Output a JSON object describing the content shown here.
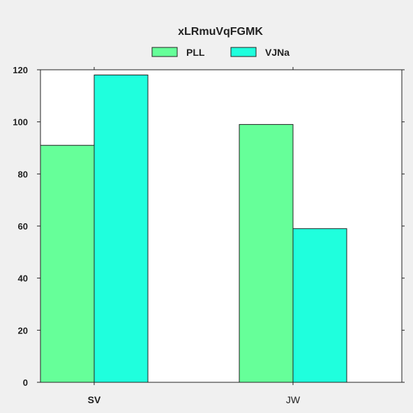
{
  "chart_data": {
    "type": "bar",
    "title": "xLRmuVqFGMK",
    "xlabel": "",
    "ylabel": "",
    "categories": [
      "SV",
      "JW"
    ],
    "series": [
      {
        "name": "PLL",
        "values": [
          91,
          99
        ]
      },
      {
        "name": "VJNa",
        "values": [
          118,
          59
        ]
      }
    ],
    "ylim": [
      0,
      120
    ],
    "yticks": [
      0,
      20,
      40,
      60,
      80,
      100,
      120
    ],
    "grid": false,
    "legend": "top-center"
  },
  "colors": {
    "PLL": "#66ff99",
    "VJNa": "#1fffdd",
    "background": "#f0f0f0",
    "plot_background": "#ffffff",
    "axis": "#222222"
  }
}
